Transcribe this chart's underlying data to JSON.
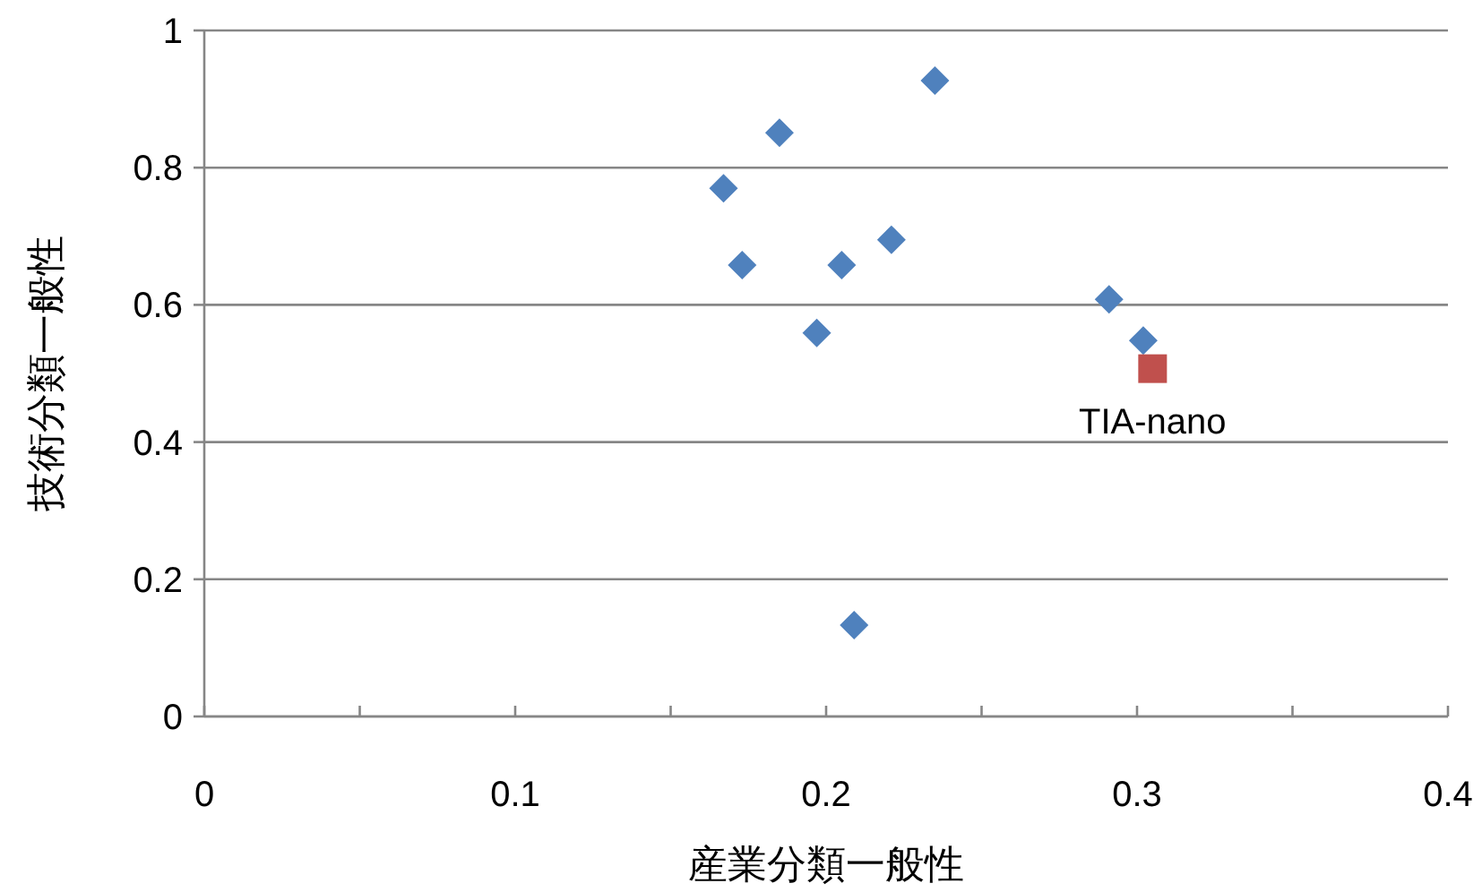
{
  "chart_data": {
    "type": "scatter",
    "xlabel": "産業分類一般性",
    "ylabel": "技術分類一般性",
    "xlim": [
      0,
      0.4
    ],
    "ylim": [
      0,
      1
    ],
    "xticks": [
      0,
      {
        "value": 0.05,
        "label": null
      },
      0.1,
      {
        "value": 0.15,
        "label": null
      },
      0.2,
      {
        "value": 0.25,
        "label": null
      },
      0.3,
      {
        "value": 0.35,
        "label": null
      },
      0.4
    ],
    "yticks": [
      0,
      0.2,
      0.4,
      0.6,
      0.8,
      1
    ],
    "grid": "y",
    "series": [
      {
        "color": "#4f81bd",
        "marker": "diamond",
        "x": [
          0.167,
          0.173,
          0.185,
          0.197,
          0.205,
          0.221,
          0.235,
          0.209,
          0.291,
          0.302
        ],
        "values": [
          0.77,
          0.658,
          0.851,
          0.559,
          0.658,
          0.695,
          0.927,
          0.133,
          0.608,
          0.548
        ]
      },
      {
        "color": "#c0504d",
        "marker": "square",
        "x": [
          0.305
        ],
        "values": [
          0.507
        ]
      }
    ],
    "annotations": [
      {
        "text": "TIA-nano",
        "x": 0.305,
        "y": 0.507
      }
    ]
  }
}
